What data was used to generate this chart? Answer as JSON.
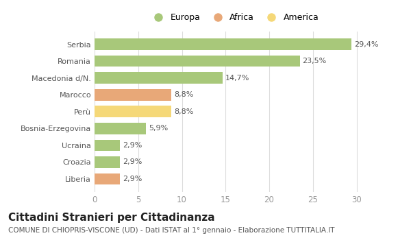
{
  "categories": [
    "Serbia",
    "Romania",
    "Macedonia d/N.",
    "Marocco",
    "Perù",
    "Bosnia-Erzegovina",
    "Ucraina",
    "Croazia",
    "Liberia"
  ],
  "values": [
    29.4,
    23.5,
    14.7,
    8.8,
    8.8,
    5.9,
    2.9,
    2.9,
    2.9
  ],
  "labels": [
    "29,4%",
    "23,5%",
    "14,7%",
    "8,8%",
    "8,8%",
    "5,9%",
    "2,9%",
    "2,9%",
    "2,9%"
  ],
  "colors": [
    "#a8c87a",
    "#a8c87a",
    "#a8c87a",
    "#e8a878",
    "#f5d878",
    "#a8c87a",
    "#a8c87a",
    "#a8c87a",
    "#e8a878"
  ],
  "legend": [
    {
      "label": "Europa",
      "color": "#a8c87a"
    },
    {
      "label": "Africa",
      "color": "#e8a878"
    },
    {
      "label": "America",
      "color": "#f5d878"
    }
  ],
  "xlim": [
    0,
    32
  ],
  "xticks": [
    0,
    5,
    10,
    15,
    20,
    25,
    30
  ],
  "title": "Cittadini Stranieri per Cittadinanza",
  "subtitle": "COMUNE DI CHIOPRIS-VISCONE (UD) - Dati ISTAT al 1° gennaio - Elaborazione TUTTITALIA.IT",
  "background_color": "#ffffff",
  "bar_height": 0.68,
  "label_fontsize": 8.0,
  "ytick_fontsize": 8.0,
  "xtick_fontsize": 8.5,
  "title_fontsize": 11,
  "subtitle_fontsize": 7.5
}
